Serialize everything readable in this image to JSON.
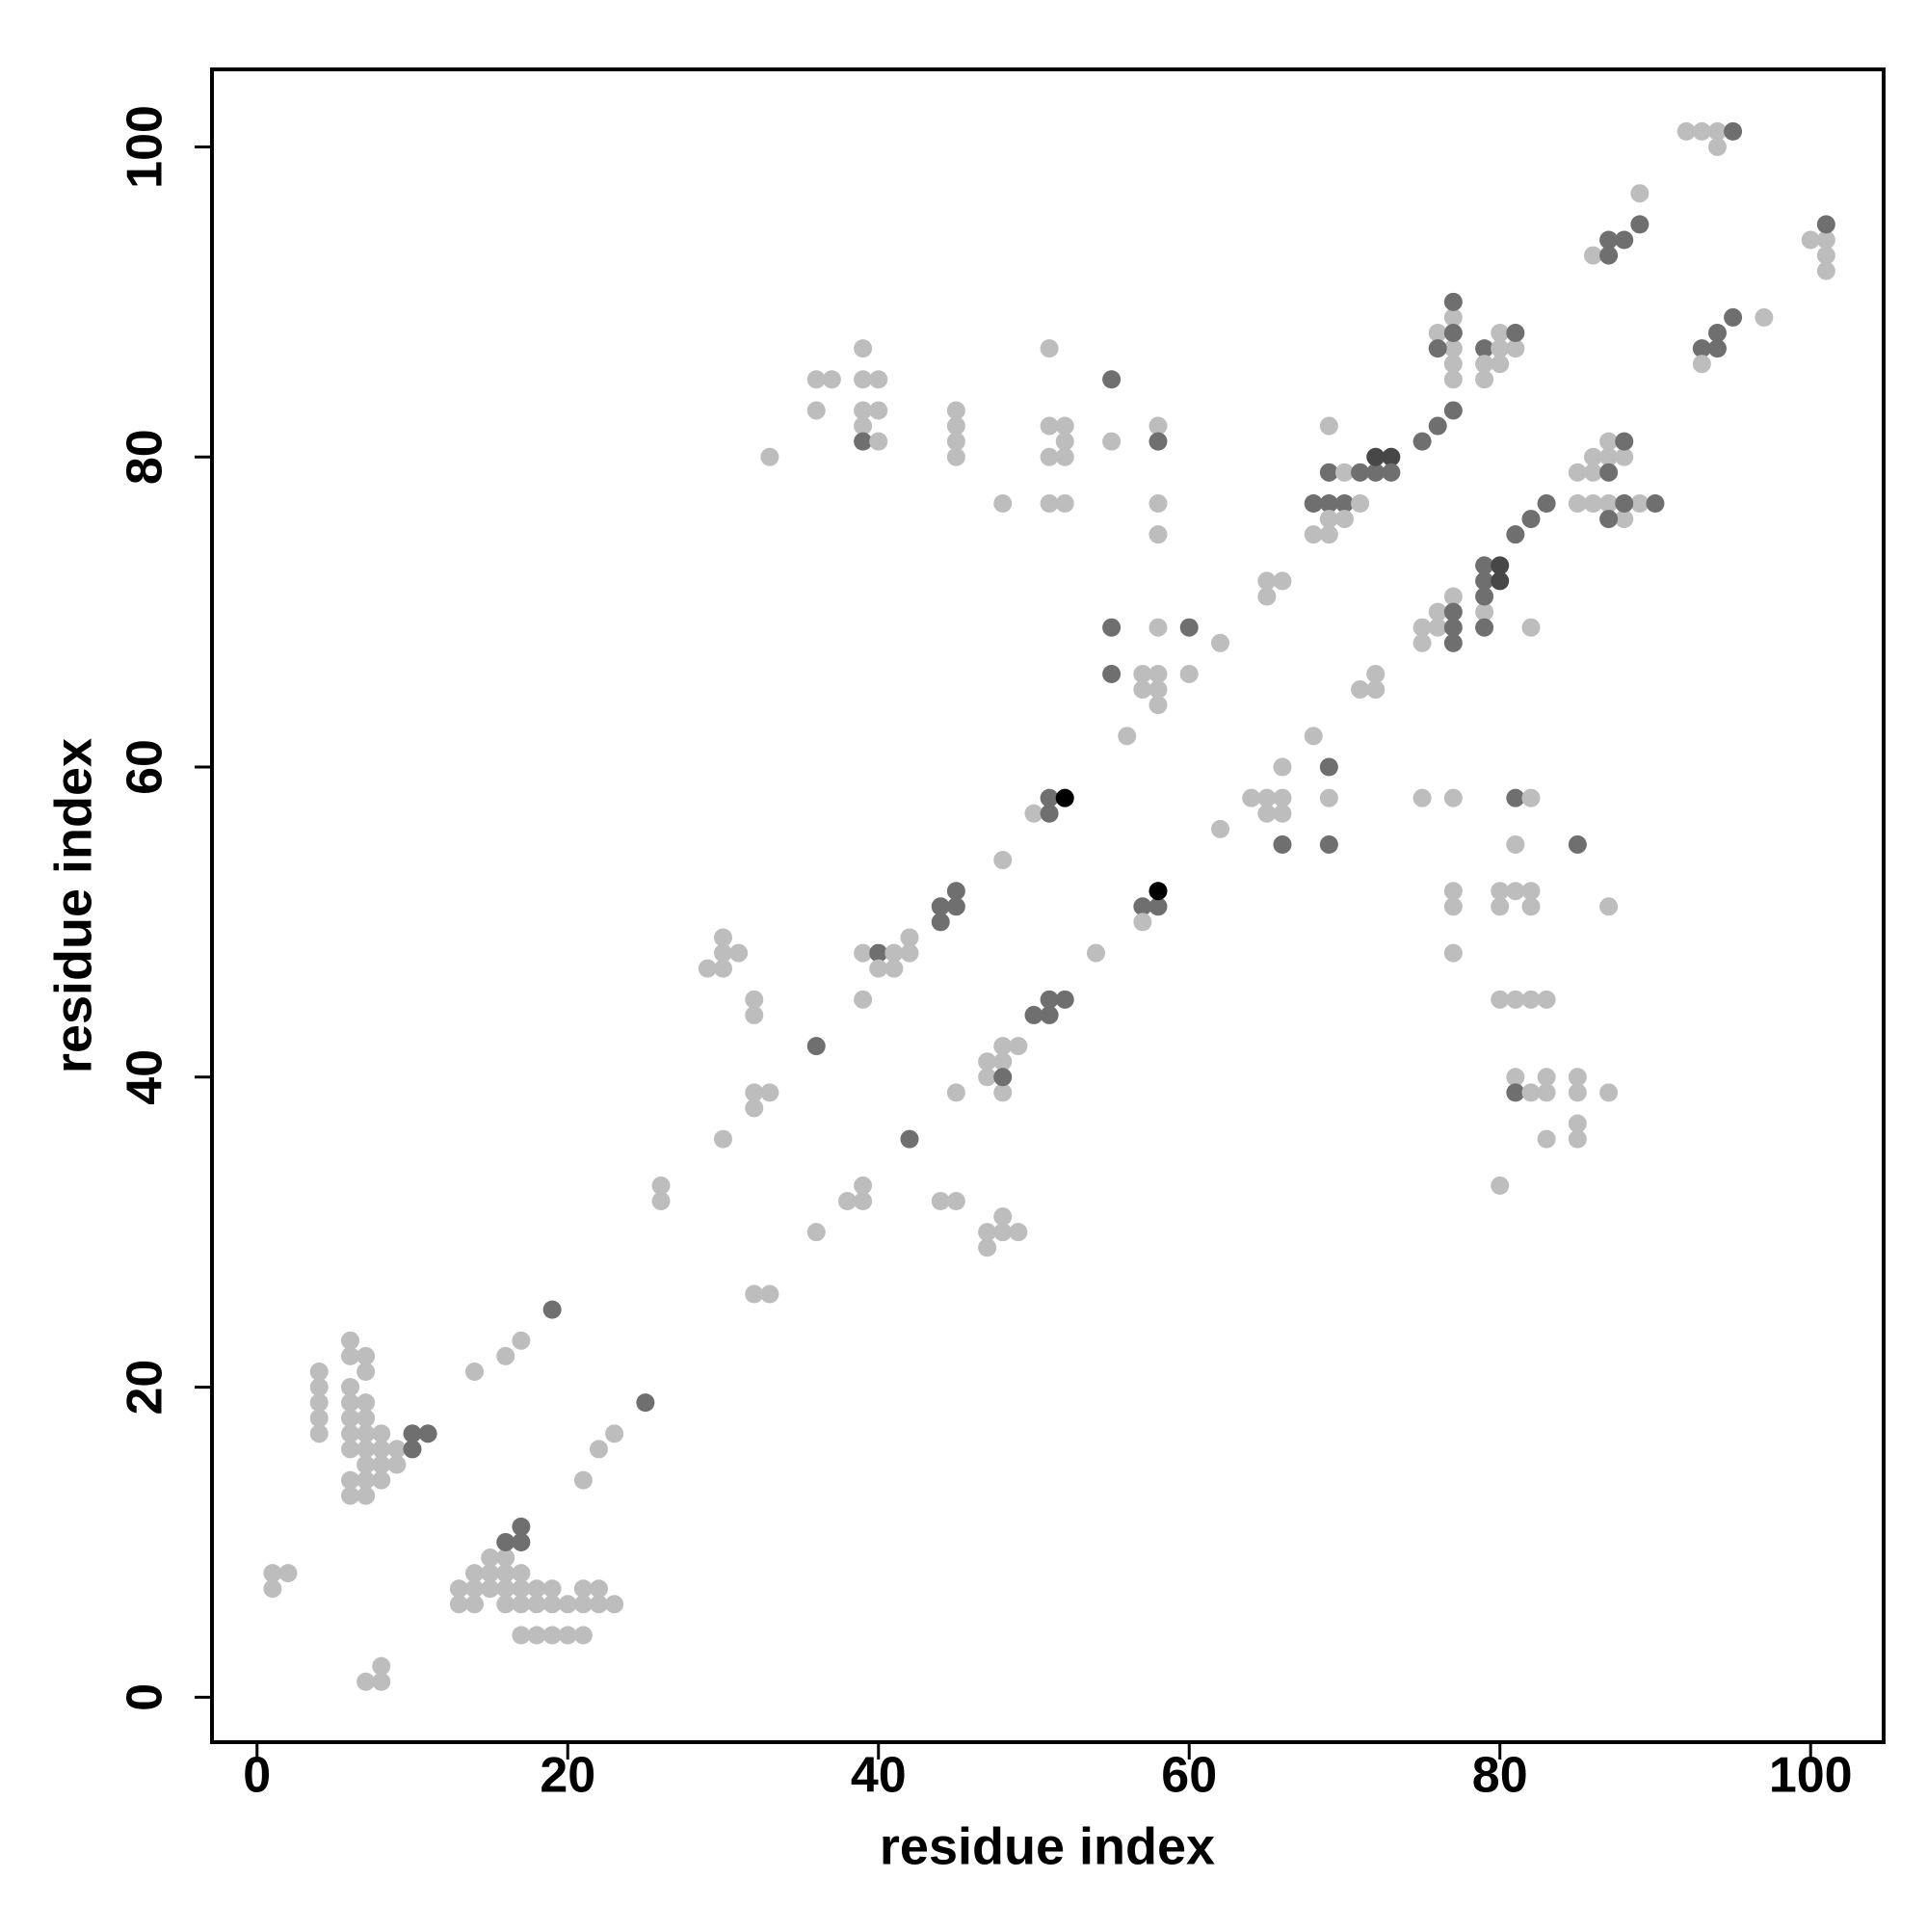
{
  "chart_data": {
    "type": "scatter",
    "x_label": "residue index",
    "y_label": "residue index",
    "xlim": [
      -2.9,
      104.7
    ],
    "ylim": [
      -2.9,
      105
    ],
    "xticks": [
      0,
      20,
      40,
      60,
      80,
      100
    ],
    "yticks": [
      0,
      20,
      40,
      60,
      80,
      100
    ],
    "x": [
      1,
      1,
      2,
      7,
      8,
      8,
      4,
      4,
      4,
      4,
      4,
      6,
      6,
      6,
      6,
      6,
      6,
      6,
      6,
      6,
      7,
      7,
      7,
      7,
      7,
      7,
      7,
      7,
      7,
      8,
      8,
      8,
      8,
      9,
      9,
      10,
      10,
      11,
      13,
      13,
      14,
      14,
      14,
      15,
      15,
      15,
      16,
      16,
      16,
      16,
      17,
      17,
      17,
      17,
      18,
      18,
      18,
      19,
      19,
      19,
      20,
      20,
      21,
      21,
      21,
      22,
      22,
      23,
      16,
      17,
      17,
      14,
      16,
      17,
      19,
      21,
      22,
      23,
      25,
      26,
      26,
      29,
      30,
      30,
      30,
      31,
      30,
      32,
      32,
      32,
      32,
      33,
      33,
      32,
      33,
      36,
      36,
      36,
      37,
      36,
      38,
      39,
      39,
      39,
      39,
      39,
      39,
      39,
      39,
      39,
      40,
      40,
      40,
      40,
      40,
      41,
      41,
      42,
      42,
      42,
      44,
      45,
      45,
      44,
      44,
      45,
      45,
      45,
      45,
      45,
      45,
      47,
      47,
      48,
      48,
      48,
      49,
      47,
      47,
      48,
      48,
      49,
      48,
      48,
      48,
      50,
      51,
      51,
      52,
      50,
      51,
      51,
      52,
      51,
      51,
      51,
      51,
      52,
      52,
      52,
      52,
      54,
      55,
      55,
      55,
      55,
      56,
      57,
      57,
      58,
      58,
      58,
      58,
      58,
      58,
      58,
      58,
      57,
      58,
      57,
      58,
      60,
      60,
      62,
      62,
      64,
      65,
      65,
      66,
      66,
      66,
      66,
      65,
      65,
      66,
      68,
      69,
      69,
      69,
      68,
      69,
      70,
      69,
      68,
      69,
      69,
      70,
      70,
      71,
      69,
      71,
      72,
      72,
      73,
      73,
      71,
      72,
      72,
      75,
      76,
      77,
      76,
      77,
      77,
      77,
      77,
      76,
      77,
      77,
      79,
      79,
      79,
      80,
      80,
      80,
      81,
      81,
      75,
      75,
      76,
      76,
      77,
      77,
      77,
      77,
      75,
      77,
      77,
      77,
      77,
      79,
      79,
      79,
      79,
      79,
      80,
      80,
      81,
      82,
      83,
      82,
      81,
      82,
      81,
      80,
      80,
      81,
      82,
      82,
      80,
      81,
      82,
      83,
      81,
      81,
      82,
      83,
      83,
      83,
      80,
      85,
      85,
      85,
      85,
      85,
      87,
      87,
      85,
      86,
      86,
      87,
      87,
      88,
      85,
      86,
      87,
      88,
      89,
      87,
      87,
      88,
      88,
      90,
      86,
      87,
      87,
      88,
      89,
      89,
      93,
      93,
      94,
      94,
      95,
      97,
      92,
      93,
      94,
      94,
      95,
      100,
      101,
      101,
      101,
      101
    ],
    "values": [
      8,
      7,
      8,
      1,
      1,
      2,
      21,
      20,
      19,
      18,
      17,
      23,
      22,
      20,
      19,
      18,
      17,
      16,
      14,
      13,
      22,
      21,
      19,
      18,
      17,
      16,
      15,
      14,
      13,
      17,
      16,
      15,
      14,
      16,
      15,
      17,
      16,
      17,
      7,
      6,
      8,
      7,
      6,
      9,
      8,
      7,
      9,
      8,
      7,
      6,
      8,
      7,
      6,
      4,
      7,
      6,
      4,
      7,
      6,
      4,
      6,
      4,
      7,
      6,
      4,
      7,
      6,
      6,
      10,
      10,
      11,
      21,
      22,
      23,
      25,
      14,
      16,
      17,
      19,
      33,
      32,
      47,
      49,
      48,
      47,
      48,
      36,
      45,
      44,
      39,
      38,
      39,
      80,
      26,
      26,
      42,
      30,
      85,
      85,
      83,
      32,
      33,
      32,
      45,
      48,
      87,
      85,
      83,
      82,
      81,
      85,
      83,
      81,
      48,
      47,
      48,
      47,
      49,
      48,
      36,
      32,
      32,
      39,
      51,
      50,
      52,
      51,
      83,
      82,
      81,
      80,
      41,
      40,
      42,
      41,
      39,
      42,
      30,
      29,
      31,
      30,
      30,
      40,
      54,
      77,
      57,
      58,
      57,
      58,
      44,
      44,
      45,
      45,
      87,
      82,
      80,
      77,
      82,
      81,
      80,
      77,
      48,
      85,
      81,
      69,
      66,
      62,
      66,
      65,
      66,
      65,
      64,
      69,
      77,
      75,
      82,
      81,
      51,
      51,
      50,
      52,
      69,
      66,
      68,
      56,
      58,
      58,
      57,
      58,
      57,
      60,
      55,
      72,
      71,
      72,
      62,
      60,
      58,
      55,
      77,
      77,
      77,
      79,
      75,
      75,
      76,
      76,
      79,
      77,
      82,
      79,
      79,
      80,
      80,
      79,
      65,
      65,
      66,
      81,
      82,
      83,
      88,
      89,
      87,
      86,
      85,
      87,
      90,
      88,
      87,
      86,
      85,
      86,
      87,
      88,
      87,
      88,
      69,
      68,
      70,
      69,
      71,
      70,
      69,
      68,
      58,
      58,
      52,
      51,
      48,
      70,
      69,
      73,
      72,
      71,
      73,
      72,
      75,
      76,
      77,
      69,
      58,
      58,
      55,
      52,
      51,
      52,
      52,
      51,
      45,
      45,
      45,
      45,
      40,
      39,
      39,
      40,
      39,
      36,
      33,
      40,
      39,
      37,
      36,
      55,
      51,
      39,
      79,
      80,
      79,
      81,
      80,
      80,
      77,
      77,
      77,
      76,
      77,
      79,
      76,
      81,
      77,
      77,
      93,
      94,
      93,
      94,
      95,
      97,
      87,
      86,
      88,
      87,
      89,
      89,
      101,
      101,
      101,
      100,
      101,
      94,
      94,
      93,
      92,
      95
    ],
    "point_colors": [
      "#bdbdbd",
      "#bdbdbd",
      "#bdbdbd",
      "#bdbdbd",
      "#bdbdbd",
      "#bdbdbd",
      "#bdbdbd",
      "#bdbdbd",
      "#bdbdbd",
      "#bdbdbd",
      "#bdbdbd",
      "#bdbdbd",
      "#bdbdbd",
      "#bdbdbd",
      "#bdbdbd",
      "#bdbdbd",
      "#bdbdbd",
      "#bdbdbd",
      "#bdbdbd",
      "#bdbdbd",
      "#bdbdbd",
      "#bdbdbd",
      "#bdbdbd",
      "#bdbdbd",
      "#bdbdbd",
      "#bdbdbd",
      "#bdbdbd",
      "#bdbdbd",
      "#bdbdbd",
      "#bdbdbd",
      "#bdbdbd",
      "#bdbdbd",
      "#bdbdbd",
      "#bdbdbd",
      "#bdbdbd",
      "#6f6f6f",
      "#6f6f6f",
      "#6f6f6f",
      "#bdbdbd",
      "#bdbdbd",
      "#bdbdbd",
      "#bdbdbd",
      "#bdbdbd",
      "#bdbdbd",
      "#bdbdbd",
      "#bdbdbd",
      "#bdbdbd",
      "#bdbdbd",
      "#bdbdbd",
      "#bdbdbd",
      "#bdbdbd",
      "#bdbdbd",
      "#bdbdbd",
      "#bdbdbd",
      "#bdbdbd",
      "#bdbdbd",
      "#bdbdbd",
      "#bdbdbd",
      "#bdbdbd",
      "#bdbdbd",
      "#bdbdbd",
      "#bdbdbd",
      "#bdbdbd",
      "#bdbdbd",
      "#bdbdbd",
      "#bdbdbd",
      "#bdbdbd",
      "#bdbdbd",
      "#6f6f6f",
      "#6f6f6f",
      "#6f6f6f",
      "#bdbdbd",
      "#bdbdbd",
      "#bdbdbd",
      "#6f6f6f",
      "#bdbdbd",
      "#bdbdbd",
      "#bdbdbd",
      "#6f6f6f",
      "#bdbdbd",
      "#bdbdbd",
      "#bdbdbd",
      "#bdbdbd",
      "#bdbdbd",
      "#bdbdbd",
      "#bdbdbd",
      "#bdbdbd",
      "#bdbdbd",
      "#bdbdbd",
      "#bdbdbd",
      "#bdbdbd",
      "#bdbdbd",
      "#bdbdbd",
      "#bdbdbd",
      "#bdbdbd",
      "#6f6f6f",
      "#bdbdbd",
      "#bdbdbd",
      "#bdbdbd",
      "#bdbdbd",
      "#bdbdbd",
      "#bdbdbd",
      "#bdbdbd",
      "#bdbdbd",
      "#bdbdbd",
      "#bdbdbd",
      "#bdbdbd",
      "#bdbdbd",
      "#bdbdbd",
      "#6f6f6f",
      "#bdbdbd",
      "#bdbdbd",
      "#bdbdbd",
      "#6f6f6f",
      "#bdbdbd",
      "#bdbdbd",
      "#bdbdbd",
      "#bdbdbd",
      "#bdbdbd",
      "#6f6f6f",
      "#bdbdbd",
      "#bdbdbd",
      "#bdbdbd",
      "#6f6f6f",
      "#6f6f6f",
      "#6f6f6f",
      "#6f6f6f",
      "#bdbdbd",
      "#bdbdbd",
      "#bdbdbd",
      "#bdbdbd",
      "#bdbdbd",
      "#bdbdbd",
      "#bdbdbd",
      "#bdbdbd",
      "#bdbdbd",
      "#bdbdbd",
      "#bdbdbd",
      "#bdbdbd",
      "#bdbdbd",
      "#bdbdbd",
      "#bdbdbd",
      "#6f6f6f",
      "#bdbdbd",
      "#bdbdbd",
      "#bdbdbd",
      "#6f6f6f",
      "#6f6f6f",
      "#000000",
      "#6f6f6f",
      "#6f6f6f",
      "#6f6f6f",
      "#6f6f6f",
      "#bdbdbd",
      "#bdbdbd",
      "#bdbdbd",
      "#bdbdbd",
      "#bdbdbd",
      "#bdbdbd",
      "#bdbdbd",
      "#bdbdbd",
      "#bdbdbd",
      "#6f6f6f",
      "#bdbdbd",
      "#6f6f6f",
      "#6f6f6f",
      "#bdbdbd",
      "#bdbdbd",
      "#bdbdbd",
      "#bdbdbd",
      "#bdbdbd",
      "#bdbdbd",
      "#bdbdbd",
      "#bdbdbd",
      "#bdbdbd",
      "#bdbdbd",
      "#6f6f6f",
      "#6f6f6f",
      "#6f6f6f",
      "#bdbdbd",
      "#000000",
      "#6f6f6f",
      "#bdbdbd",
      "#bdbdbd",
      "#bdbdbd",
      "#bdbdbd",
      "#bdbdbd",
      "#bdbdbd",
      "#bdbdbd",
      "#bdbdbd",
      "#bdbdbd",
      "#6f6f6f",
      "#bdbdbd",
      "#bdbdbd",
      "#bdbdbd",
      "#bdbdbd",
      "#6f6f6f",
      "#bdbdbd",
      "#6f6f6f",
      "#6f6f6f",
      "#6f6f6f",
      "#6f6f6f",
      "#6f6f6f",
      "#bdbdbd",
      "#bdbdbd",
      "#bdbdbd",
      "#bdbdbd",
      "#bdbdbd",
      "#bdbdbd",
      "#bdbdbd",
      "#6f6f6f",
      "#6f6f6f",
      "#474747",
      "#474747",
      "#6f6f6f",
      "#bdbdbd",
      "#bdbdbd",
      "#bdbdbd",
      "#6f6f6f",
      "#6f6f6f",
      "#6f6f6f",
      "#bdbdbd",
      "#bdbdbd",
      "#bdbdbd",
      "#bdbdbd",
      "#bdbdbd",
      "#6f6f6f",
      "#6f6f6f",
      "#6f6f6f",
      "#6f6f6f",
      "#bdbdbd",
      "#bdbdbd",
      "#bdbdbd",
      "#bdbdbd",
      "#bdbdbd",
      "#bdbdbd",
      "#6f6f6f",
      "#bdbdbd",
      "#bdbdbd",
      "#bdbdbd",
      "#bdbdbd",
      "#bdbdbd",
      "#6f6f6f",
      "#6f6f6f",
      "#6f6f6f",
      "#bdbdbd",
      "#bdbdbd",
      "#bdbdbd",
      "#bdbdbd",
      "#bdbdbd",
      "#bdbdbd",
      "#6f6f6f",
      "#6f6f6f",
      "#6f6f6f",
      "#6f6f6f",
      "#474747",
      "#474747",
      "#6f6f6f",
      "#6f6f6f",
      "#6f6f6f",
      "#bdbdbd",
      "#6f6f6f",
      "#bdbdbd",
      "#bdbdbd",
      "#bdbdbd",
      "#bdbdbd",
      "#bdbdbd",
      "#bdbdbd",
      "#bdbdbd",
      "#bdbdbd",
      "#bdbdbd",
      "#bdbdbd",
      "#bdbdbd",
      "#bdbdbd",
      "#6f6f6f",
      "#bdbdbd",
      "#bdbdbd",
      "#bdbdbd",
      "#bdbdbd",
      "#bdbdbd",
      "#bdbdbd",
      "#bdbdbd",
      "#bdbdbd",
      "#bdbdbd",
      "#6f6f6f",
      "#bdbdbd",
      "#bdbdbd",
      "#bdbdbd",
      "#bdbdbd",
      "#bdbdbd",
      "#bdbdbd",
      "#bdbdbd",
      "#bdbdbd",
      "#bdbdbd",
      "#bdbdbd",
      "#bdbdbd",
      "#bdbdbd",
      "#bdbdbd",
      "#6f6f6f",
      "#6f6f6f",
      "#6f6f6f",
      "#6f6f6f",
      "#6f6f6f",
      "#bdbdbd",
      "#6f6f6f",
      "#6f6f6f",
      "#6f6f6f",
      "#6f6f6f",
      "#bdbdbd",
      "#6f6f6f",
      "#bdbdbd",
      "#6f6f6f",
      "#6f6f6f",
      "#6f6f6f",
      "#bdbdbd",
      "#bdbdbd",
      "#bdbdbd",
      "#bdbdbd",
      "#bdbdbd",
      "#6f6f6f",
      "#bdbdbd",
      "#bdbdbd",
      "#bdbdbd",
      "#bdbdbd",
      "#6f6f6f"
    ]
  }
}
